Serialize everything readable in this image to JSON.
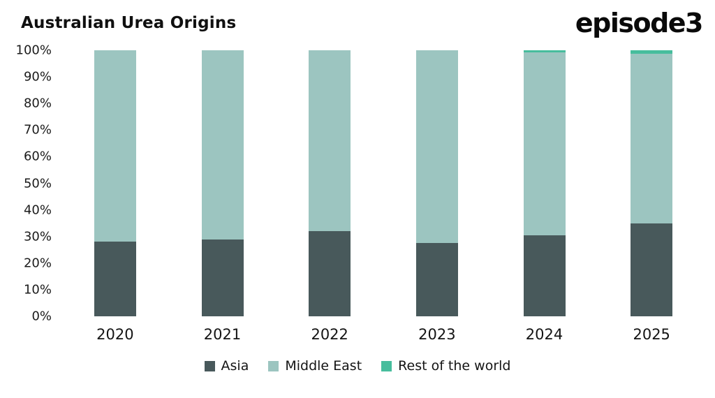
{
  "header": {
    "title": "Australian Urea Origins",
    "logo": "episode3"
  },
  "chart_data": {
    "type": "bar",
    "stacked": true,
    "title": "Australian Urea Origins",
    "categories": [
      "2020",
      "2021",
      "2022",
      "2023",
      "2024",
      "2025"
    ],
    "series": [
      {
        "name": "Asia",
        "color": "#48595b",
        "values": [
          28,
          29,
          32,
          27.5,
          30.5,
          35
        ]
      },
      {
        "name": "Middle East",
        "color": "#9cc5c0",
        "values": [
          72,
          71,
          68,
          72.5,
          68.7,
          63.8
        ]
      },
      {
        "name": "Rest of the world",
        "color": "#47bd9d",
        "values": [
          0,
          0,
          0,
          0,
          0.8,
          1.2
        ]
      }
    ],
    "xlabel": "",
    "ylabel": "",
    "ylim": [
      0,
      100
    ],
    "ytick_labels": [
      "0%",
      "10%",
      "20%",
      "30%",
      "40%",
      "50%",
      "60%",
      "70%",
      "80%",
      "90%",
      "100%"
    ],
    "grid": false,
    "legend_position": "bottom"
  }
}
